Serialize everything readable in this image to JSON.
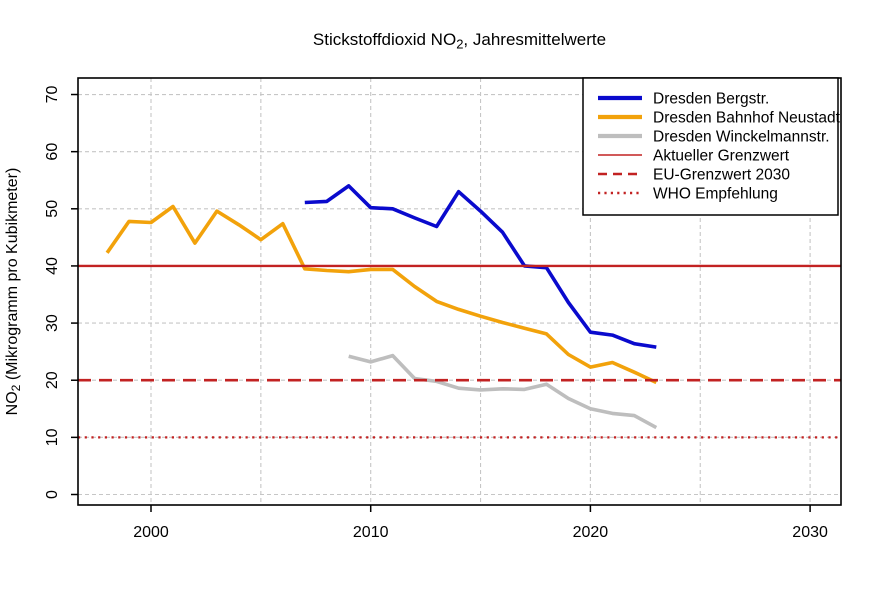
{
  "title": {
    "prefix": "Stickstoffdioxid NO",
    "subscript": "2",
    "suffix": ", Jahresmittelwerte"
  },
  "colors": {
    "series_blue": "#0A0ACD",
    "series_orange": "#F2A20B",
    "series_gray": "#BEBEBE",
    "reference_red": "#C22222",
    "gridline": "#C6C6C6",
    "axis": "#000000",
    "background": "#FFFFFF"
  },
  "chart_data": {
    "type": "line",
    "title": "Stickstoffdioxid NO2, Jahresmittelwerte",
    "xlabel": "",
    "ylabel": "NO2 (Mikrogramm pro Kubikmeter)",
    "x_axis": {
      "tick_years": [
        2000,
        2010,
        2020,
        2030
      ],
      "gridline_years": [
        2000,
        2005,
        2010,
        2015,
        2020,
        2025,
        2030
      ],
      "range": [
        1996.7,
        2031.4
      ]
    },
    "y_axis": {
      "label_prefix": "NO",
      "label_subscript": "2",
      "label_suffix": " (Mikrogramm pro Kubikmeter)",
      "ticks": [
        0,
        10,
        20,
        30,
        40,
        50,
        60,
        70
      ],
      "range": [
        0,
        73
      ]
    },
    "grid": true,
    "legend_position": "top-right",
    "series": [
      {
        "name": "Dresden Bergstr.",
        "color_key": "series_blue",
        "start_year": 2007,
        "years": [
          2007,
          2008,
          2009,
          2010,
          2011,
          2012,
          2013,
          2014,
          2015,
          2016,
          2017,
          2018,
          2019,
          2020,
          2021,
          2022,
          2023
        ],
        "values": [
          51.1,
          51.3,
          54.0,
          50.2,
          50.0,
          48.4,
          46.9,
          53.0,
          49.6,
          45.9,
          40.0,
          39.7,
          33.6,
          28.4,
          27.9,
          26.4,
          25.8
        ]
      },
      {
        "name": "Dresden Bahnhof Neustadt",
        "color_key": "series_orange",
        "start_year": 1998,
        "years": [
          1998,
          1999,
          2000,
          2001,
          2002,
          2003,
          2004,
          2005,
          2006,
          2007,
          2008,
          2009,
          2010,
          2011,
          2012,
          2013,
          2014,
          2015,
          2016,
          2017,
          2018,
          2019,
          2020,
          2021,
          2022,
          2023
        ],
        "values": [
          42.3,
          47.8,
          47.6,
          50.4,
          44.0,
          49.6,
          47.2,
          44.6,
          47.4,
          39.5,
          39.2,
          39.0,
          39.4,
          39.4,
          36.4,
          33.8,
          32.4,
          31.2,
          30.1,
          29.1,
          28.1,
          24.5,
          22.3,
          23.1,
          21.4,
          19.6
        ]
      },
      {
        "name": "Dresden Winckelmannstr.",
        "color_key": "series_gray",
        "start_year": 2009,
        "years": [
          2009,
          2010,
          2011,
          2012,
          2013,
          2014,
          2015,
          2016,
          2017,
          2018,
          2019,
          2020,
          2021,
          2022,
          2023
        ],
        "values": [
          24.2,
          23.2,
          24.3,
          20.3,
          19.8,
          18.6,
          18.3,
          18.5,
          18.4,
          19.3,
          16.8,
          15.0,
          14.2,
          13.8,
          11.7
        ]
      }
    ],
    "reference_lines": [
      {
        "name": "Aktueller Grenzwert",
        "value": 40,
        "style": "solid",
        "color_key": "reference_red"
      },
      {
        "name": "EU-Grenzwert 2030",
        "value": 20,
        "style": "dashed",
        "color_key": "reference_red"
      },
      {
        "name": "WHO Empfehlung",
        "value": 10,
        "style": "dotted",
        "color_key": "reference_red"
      }
    ]
  },
  "legend": {
    "entries": [
      {
        "label": "Dresden Bergstr.",
        "swatch": "thick-solid",
        "color_key": "series_blue"
      },
      {
        "label": "Dresden Bahnhof Neustadt",
        "swatch": "thick-solid",
        "color_key": "series_orange"
      },
      {
        "label": "Dresden Winckelmannstr.",
        "swatch": "thick-solid",
        "color_key": "series_gray"
      },
      {
        "label": "Aktueller Grenzwert",
        "swatch": "thin-solid",
        "color_key": "reference_red"
      },
      {
        "label": "EU-Grenzwert 2030",
        "swatch": "dashed",
        "color_key": "reference_red"
      },
      {
        "label": "WHO Empfehlung",
        "swatch": "dotted",
        "color_key": "reference_red"
      }
    ]
  }
}
